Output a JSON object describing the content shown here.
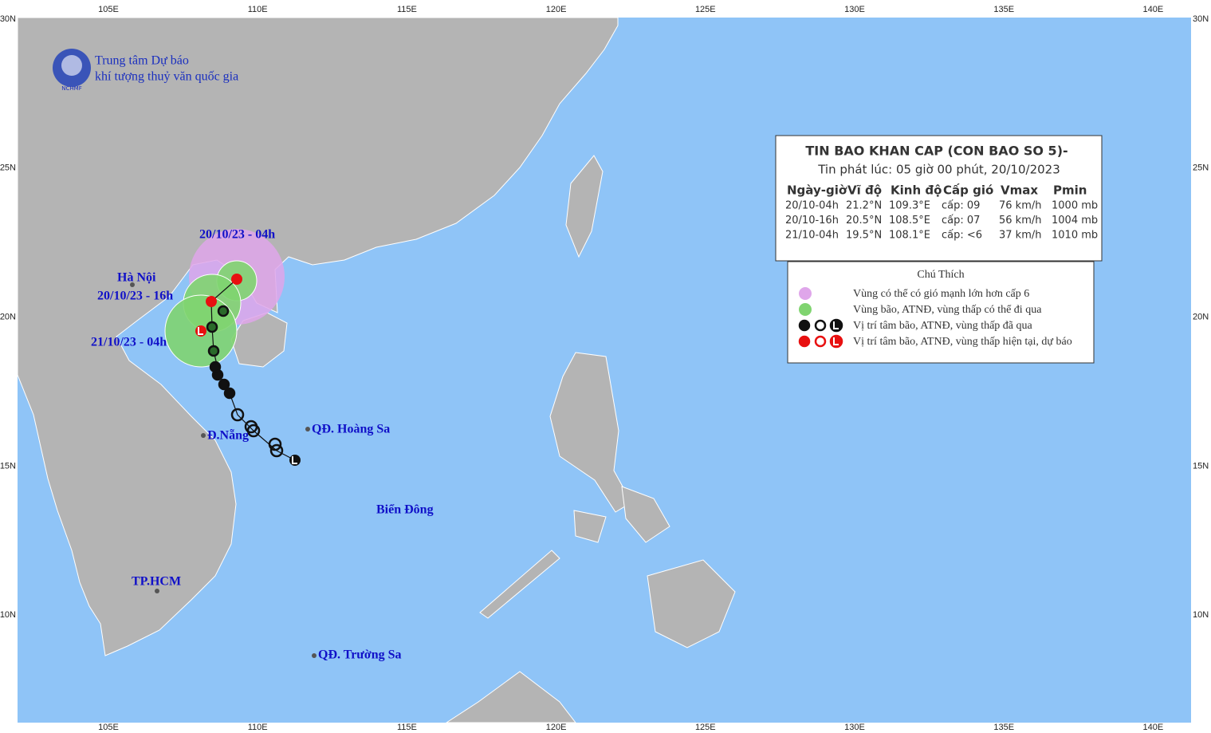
{
  "axes": {
    "lon_labels": [
      "105E",
      "110E",
      "115E",
      "120E",
      "125E",
      "130E",
      "135E",
      "140E"
    ],
    "lat_labels": [
      "30N",
      "25N",
      "20N",
      "15N",
      "10N"
    ]
  },
  "logo": {
    "line1": "Trung tâm Dự báo",
    "line2": "khí tượng thuỷ văn quốc gia",
    "badge": "NCHMF"
  },
  "bulletin": {
    "title": "TIN BAO KHAN CAP (CON BAO SO 5)-",
    "subtitle": "Tin phát lúc: 05 giờ 00 phút, 20/10/2023",
    "columns": [
      "Ngày-giờ",
      "Vĩ độ",
      "Kinh độ",
      "Cấp gió",
      "Vmax",
      "Pmin"
    ],
    "rows": [
      [
        "20/10-04h",
        "21.2°N",
        "109.3°E",
        "cấp: 09",
        "76 km/h",
        "1000 mb"
      ],
      [
        "20/10-16h",
        "20.5°N",
        "108.5°E",
        "cấp: 07",
        "56 km/h",
        "1004 mb"
      ],
      [
        "21/10-04h",
        "19.5°N",
        "108.1°E",
        "cấp: <6",
        "37 km/h",
        "1010 mb"
      ]
    ]
  },
  "legend": {
    "title": "Chú Thích",
    "items": [
      "Vùng có thể có gió mạnh lớn hơn cấp 6",
      "Vùng bão, ATNĐ, vùng thấp có thể đi qua",
      "Vị trí tâm bão, ATNĐ, vùng thấp đã qua",
      "Vị trí tâm bão, ATNĐ, vùng thấp hiện tại, dự báo"
    ]
  },
  "places": [
    "20/10/23 - 04h",
    "Hà Nội",
    "20/10/23 - 16h",
    "21/10/23 - 04h",
    "Đ.Nẵng",
    "QĐ. Hoàng Sa",
    "TP.HCM",
    "QĐ. Trường Sa",
    "Biển Đông"
  ]
}
